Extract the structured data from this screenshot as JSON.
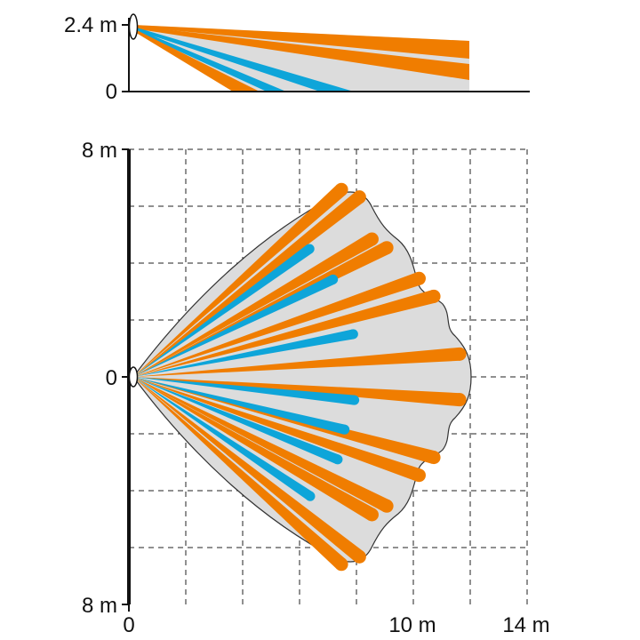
{
  "colors": {
    "background": "#ffffff",
    "coverage_fill": "#dcdcdc",
    "coverage_outline": "#333333",
    "long_zone": "#f07d00",
    "short_zone": "#0ea5d9",
    "axis": "#111111",
    "grid": "#222222",
    "sensor": "#ffffff"
  },
  "side_view": {
    "labels": {
      "height_top": "2.4 m",
      "height_bottom": "0"
    },
    "range_m": 12,
    "mount_height_m": 2.4
  },
  "top_view": {
    "labels": {
      "y_top": "8 m",
      "y_center": "0",
      "y_bottom": "8 m",
      "x_start": "0",
      "x_mid": "10 m",
      "x_end": "14 m"
    },
    "range_m": 12,
    "short_range_m": 8
  },
  "icons": [
    "sensor-icon"
  ]
}
